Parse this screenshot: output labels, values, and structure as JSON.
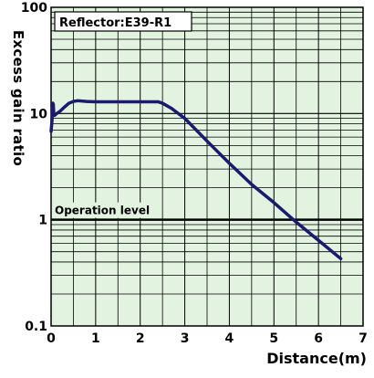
{
  "chart_data": {
    "type": "line",
    "title": "",
    "xlabel": "Distance(m)",
    "ylabel": "Excess gain ratio",
    "xlim": [
      0,
      7
    ],
    "ylim": [
      0.1,
      100
    ],
    "yscale": "log",
    "grid": true,
    "x_ticks": [
      "0",
      "1",
      "2",
      "3",
      "4",
      "5",
      "6",
      "7"
    ],
    "y_ticks": [
      "0.1",
      "1",
      "10",
      "100"
    ],
    "annotations": {
      "box_label": "Reflector:E39-R1",
      "operation_level": "Operation level"
    },
    "colors": {
      "plot_bg": "#e2f3df",
      "grid": "#000000",
      "line": "#1a1a6e",
      "operation_line": "#000000"
    },
    "operation_level_value": 1,
    "series": [
      {
        "x": [
          0.0,
          0.02,
          0.04,
          0.05,
          0.06,
          0.08,
          0.1,
          0.2,
          0.3,
          0.4,
          0.5,
          0.6,
          0.8,
          1.0,
          1.5,
          2.0,
          2.3,
          2.4,
          2.5,
          2.7,
          3.0,
          3.5,
          4.0,
          4.5,
          5.0,
          5.5,
          6.0,
          6.5
        ],
        "y": [
          6.8,
          8.5,
          12.5,
          12.2,
          10.0,
          9.6,
          9.8,
          10.5,
          11.5,
          12.5,
          13.0,
          13.2,
          13.0,
          12.9,
          12.9,
          12.9,
          12.9,
          12.9,
          12.5,
          11.2,
          9.0,
          5.5,
          3.4,
          2.15,
          1.45,
          0.95,
          0.64,
          0.43
        ]
      }
    ]
  }
}
